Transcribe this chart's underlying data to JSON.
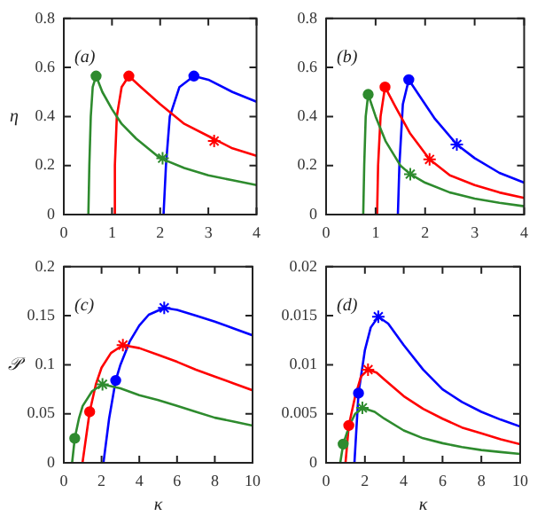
{
  "chart_data": [
    {
      "type": "line",
      "ylabel": "η",
      "annotations": [
        "(a)"
      ],
      "xlim": [
        0,
        4
      ],
      "ylim": [
        0,
        0.8
      ],
      "xticks": [
        0,
        1,
        2,
        3,
        4
      ],
      "yticks": [
        0,
        0.2,
        0.4,
        0.6,
        0.8
      ],
      "grid": false,
      "marker": "none",
      "series": [
        {
          "color": "#2e8b2e",
          "x": [
            0.51,
            0.53,
            0.56,
            0.6,
            0.67,
            0.8,
            1.0,
            1.2,
            1.5,
            2.0,
            2.5,
            3.0,
            3.5,
            4
          ],
          "values": [
            0,
            0.2,
            0.4,
            0.52,
            0.565,
            0.5,
            0.43,
            0.37,
            0.31,
            0.23,
            0.19,
            0.16,
            0.14,
            0.12
          ]
        },
        {
          "color": "#ff0000",
          "x": [
            1.03,
            1.06,
            1.1,
            1.2,
            1.35,
            1.6,
            2.0,
            2.5,
            3.0,
            3.5,
            4
          ],
          "values": [
            0,
            0.2,
            0.4,
            0.52,
            0.565,
            0.52,
            0.45,
            0.37,
            0.32,
            0.27,
            0.24
          ]
        },
        {
          "color": "#0000ff",
          "x": [
            2.07,
            2.12,
            2.2,
            2.4,
            2.7,
            3.0,
            3.5,
            4
          ],
          "values": [
            0,
            0.2,
            0.4,
            0.52,
            0.565,
            0.55,
            0.5,
            0.46
          ]
        },
        {
          "type": "scatter",
          "marker": "circle",
          "x": [
            0.67,
            1.35,
            2.7
          ],
          "values": [
            0.565,
            0.565,
            0.565
          ],
          "colors": [
            "#2e8b2e",
            "#ff0000",
            "#0000ff"
          ]
        },
        {
          "type": "scatter",
          "marker": "cross",
          "x": [
            2.05,
            3.12
          ],
          "values": [
            0.23,
            0.3
          ],
          "colors": [
            "#2e8b2e",
            "#ff0000"
          ]
        }
      ]
    },
    {
      "type": "line",
      "annotations": [
        "(b)"
      ],
      "xlim": [
        0,
        4
      ],
      "ylim": [
        0,
        0.8
      ],
      "xticks": [
        0,
        1,
        2,
        3,
        4
      ],
      "yticks": [
        0,
        0.2,
        0.4,
        0.6,
        0.8
      ],
      "grid": false,
      "marker": "none",
      "series": [
        {
          "color": "#2e8b2e",
          "x": [
            0.75,
            0.77,
            0.8,
            0.85,
            1.0,
            1.2,
            1.5,
            1.7,
            2,
            2.5,
            3,
            3.5,
            4
          ],
          "values": [
            0,
            0.2,
            0.4,
            0.49,
            0.4,
            0.3,
            0.2,
            0.165,
            0.13,
            0.09,
            0.065,
            0.048,
            0.034
          ]
        },
        {
          "color": "#ff0000",
          "x": [
            1.03,
            1.05,
            1.1,
            1.19,
            1.4,
            1.7,
            2.09,
            2.5,
            3,
            3.5,
            4
          ],
          "values": [
            0,
            0.2,
            0.4,
            0.52,
            0.44,
            0.33,
            0.225,
            0.16,
            0.12,
            0.09,
            0.068
          ]
        },
        {
          "color": "#0000ff",
          "x": [
            1.45,
            1.48,
            1.55,
            1.67,
            1.9,
            2.2,
            2.64,
            3,
            3.5,
            4
          ],
          "values": [
            0,
            0.2,
            0.45,
            0.55,
            0.48,
            0.39,
            0.286,
            0.23,
            0.17,
            0.13
          ]
        },
        {
          "type": "scatter",
          "marker": "circle",
          "x": [
            0.85,
            1.19,
            1.67
          ],
          "values": [
            0.49,
            0.52,
            0.55
          ],
          "colors": [
            "#2e8b2e",
            "#ff0000",
            "#0000ff"
          ]
        },
        {
          "type": "scatter",
          "marker": "cross",
          "x": [
            1.7,
            2.09,
            2.64
          ],
          "values": [
            0.165,
            0.225,
            0.286
          ],
          "colors": [
            "#2e8b2e",
            "#ff0000",
            "#0000ff"
          ]
        }
      ]
    },
    {
      "type": "line",
      "xlabel": "κ",
      "ylabel": "𝒫",
      "annotations": [
        "(c)"
      ],
      "xlim": [
        0,
        10
      ],
      "ylim": [
        0,
        0.2
      ],
      "xticks": [
        0,
        2,
        4,
        6,
        8,
        10
      ],
      "yticks": [
        0,
        0.05,
        0.1,
        0.15,
        0.2
      ],
      "grid": false,
      "marker": "none",
      "series": [
        {
          "color": "#2e8b2e",
          "x": [
            0.44,
            0.58,
            0.8,
            1.0,
            1.5,
            2.05,
            3,
            4,
            5,
            6,
            7,
            8,
            9,
            10
          ],
          "values": [
            0,
            0.025,
            0.045,
            0.058,
            0.073,
            0.08,
            0.076,
            0.069,
            0.064,
            0.058,
            0.052,
            0.046,
            0.042,
            0.038
          ]
        },
        {
          "color": "#ff0000",
          "x": [
            0.99,
            1.37,
            1.7,
            2.0,
            2.5,
            3.13,
            4,
            5,
            6,
            7,
            8,
            9,
            10
          ],
          "values": [
            0,
            0.052,
            0.08,
            0.097,
            0.112,
            0.12,
            0.117,
            0.11,
            0.103,
            0.095,
            0.088,
            0.081,
            0.074
          ]
        },
        {
          "color": "#0000ff",
          "x": [
            2.1,
            2.4,
            2.75,
            3,
            3.5,
            4,
            4.5,
            5.32,
            6,
            7,
            8,
            9,
            10
          ],
          "values": [
            0,
            0.045,
            0.084,
            0.1,
            0.124,
            0.14,
            0.151,
            0.158,
            0.156,
            0.15,
            0.144,
            0.137,
            0.13
          ]
        },
        {
          "type": "scatter",
          "marker": "circle",
          "x": [
            0.58,
            1.37,
            2.75
          ],
          "values": [
            0.025,
            0.052,
            0.084
          ],
          "colors": [
            "#2e8b2e",
            "#ff0000",
            "#0000ff"
          ]
        },
        {
          "type": "scatter",
          "marker": "cross",
          "x": [
            2.05,
            3.13,
            5.32
          ],
          "values": [
            0.08,
            0.12,
            0.158
          ],
          "colors": [
            "#2e8b2e",
            "#ff0000",
            "#0000ff"
          ]
        }
      ]
    },
    {
      "type": "line",
      "xlabel": "κ",
      "annotations": [
        "(d)"
      ],
      "xlim": [
        0,
        10
      ],
      "ylim": [
        0,
        0.02
      ],
      "xticks": [
        0,
        2,
        4,
        6,
        8,
        10
      ],
      "yticks": [
        0,
        0.005,
        0.01,
        0.015,
        0.02
      ],
      "grid": false,
      "marker": "none",
      "series": [
        {
          "color": "#2e8b2e",
          "x": [
            0.73,
            0.88,
            1.2,
            1.5,
            1.87,
            2.5,
            3,
            4,
            5,
            6,
            7,
            8,
            9,
            10
          ],
          "values": [
            0,
            0.0019,
            0.0038,
            0.005,
            0.0056,
            0.0052,
            0.0045,
            0.0033,
            0.0025,
            0.002,
            0.0016,
            0.0013,
            0.0011,
            0.0009
          ]
        },
        {
          "color": "#ff0000",
          "x": [
            1.0,
            1.17,
            1.5,
            1.8,
            2.16,
            2.6,
            3,
            4,
            5,
            6,
            7,
            8,
            9,
            10
          ],
          "values": [
            0,
            0.0038,
            0.0068,
            0.0088,
            0.0095,
            0.0092,
            0.0085,
            0.0068,
            0.0055,
            0.0045,
            0.0036,
            0.003,
            0.0024,
            0.0019
          ]
        },
        {
          "color": "#0000ff",
          "x": [
            1.46,
            1.67,
            2.0,
            2.3,
            2.69,
            3.2,
            4,
            5,
            6,
            7,
            8,
            9,
            10
          ],
          "values": [
            0,
            0.0071,
            0.0115,
            0.0138,
            0.0149,
            0.0142,
            0.012,
            0.0095,
            0.0075,
            0.0062,
            0.0052,
            0.0044,
            0.0037
          ]
        },
        {
          "type": "scatter",
          "marker": "circle",
          "x": [
            0.88,
            1.17,
            1.67
          ],
          "values": [
            0.0019,
            0.0038,
            0.0071
          ],
          "colors": [
            "#2e8b2e",
            "#ff0000",
            "#0000ff"
          ]
        },
        {
          "type": "scatter",
          "marker": "cross",
          "x": [
            1.87,
            2.16,
            2.69
          ],
          "values": [
            0.0056,
            0.0095,
            0.0149
          ],
          "colors": [
            "#2e8b2e",
            "#ff0000",
            "#0000ff"
          ]
        }
      ]
    }
  ]
}
